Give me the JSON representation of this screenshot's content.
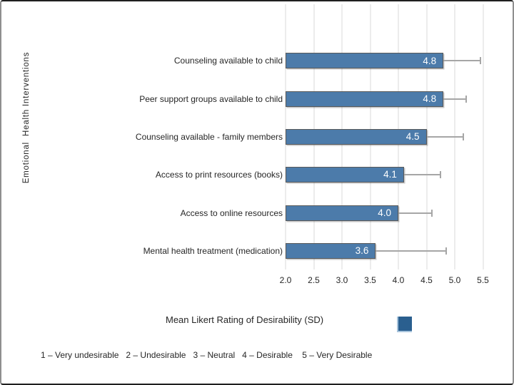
{
  "chart_data": {
    "type": "bar",
    "orientation": "horizontal",
    "xlabel": "Mean Likert Rating of Desirability (SD)",
    "ylabel": "Emotional  Health Interventions",
    "xlim": [
      2.0,
      5.5
    ],
    "grid": true,
    "legend_position": "below-right",
    "error_bars": "plus-direction-only",
    "categories": [
      "Counseling available to child",
      "Peer support groups available to child",
      "Counseling available - family members",
      "Access to print resources (books)",
      "Access to online resources",
      "Mental health treatment (medication)"
    ],
    "values": [
      4.8,
      4.8,
      4.5,
      4.1,
      4.0,
      3.6
    ],
    "sd_plus": [
      0.65,
      0.4,
      0.65,
      0.65,
      0.6,
      1.25
    ],
    "x_ticks": [
      "2.0",
      "2.5",
      "3.0",
      "3.5",
      "4.0",
      "4.5",
      "5.0",
      "5.5"
    ]
  },
  "footer": {
    "scale_key": "1 – Very undesirable   2 – Undesirable   3 – Neutral   4 – Desirable    5 – Very Desirable"
  },
  "colors": {
    "bar_fill": "#4C7BAA",
    "bar_border": "#5A5A5A",
    "bar_value_text": "#FFFFFF",
    "legend_fill": "#2A5F8F",
    "legend_edge": "#A8C4DC",
    "gridline": "#ECECEC",
    "error_bar": "#A6A6A6",
    "text": "#262626",
    "frame_side": "#8F8F8F",
    "frame_topbottom": "#1F1F1F"
  }
}
